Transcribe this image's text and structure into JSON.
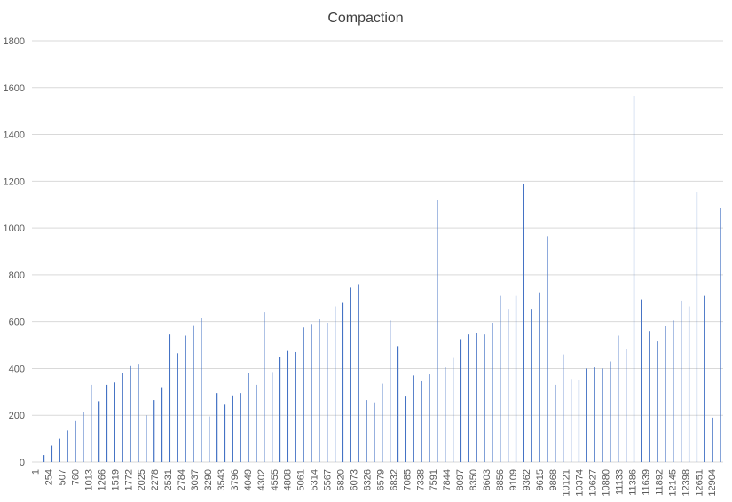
{
  "chart_data": {
    "type": "bar",
    "title": "Compaction",
    "x": [
      170,
      320,
      470,
      620,
      770,
      920,
      1070,
      1220,
      1370,
      1520,
      1670,
      1820,
      1970,
      2120,
      2270,
      2420,
      2570,
      2720,
      2870,
      3020,
      3170,
      3320,
      3470,
      3620,
      3770,
      3920,
      4070,
      4220,
      4370,
      4520,
      4670,
      4820,
      4970,
      5120,
      5270,
      5420,
      5570,
      5720,
      5870,
      6020,
      6170,
      6320,
      6470,
      6620,
      6770,
      6920,
      7070,
      7220,
      7370,
      7520,
      7670,
      7820,
      7970,
      8120,
      8270,
      8420,
      8570,
      8720,
      8870,
      9020,
      9170,
      9320,
      9470,
      9620,
      9770,
      9920,
      10070,
      10220,
      10370,
      10520,
      10670,
      10820,
      10970,
      11120,
      11270,
      11420,
      11570,
      11720,
      11870,
      12020,
      12170,
      12320,
      12470,
      12620,
      12770,
      12920,
      13070
    ],
    "values": [
      30,
      70,
      100,
      135,
      175,
      215,
      330,
      260,
      330,
      340,
      380,
      410,
      420,
      200,
      265,
      320,
      545,
      465,
      540,
      585,
      615,
      195,
      295,
      245,
      285,
      295,
      380,
      330,
      640,
      385,
      450,
      475,
      470,
      575,
      590,
      610,
      595,
      665,
      680,
      745,
      760,
      265,
      255,
      335,
      605,
      495,
      280,
      370,
      345,
      375,
      1120,
      405,
      445,
      525,
      545,
      550,
      545,
      595,
      710,
      655,
      710,
      1190,
      655,
      725,
      965,
      330,
      460,
      355,
      350,
      400,
      405,
      400,
      430,
      540,
      485,
      1565,
      695,
      560,
      515,
      580,
      605,
      690,
      665,
      1155,
      710,
      190,
      1085
    ],
    "color": "#4472c4",
    "xlim": [
      -60,
      13120
    ],
    "xticks": [
      1,
      254,
      507,
      760,
      1013,
      1266,
      1519,
      1772,
      2025,
      2278,
      2531,
      2784,
      3037,
      3290,
      3543,
      3796,
      4049,
      4302,
      4555,
      4808,
      5061,
      5314,
      5567,
      5820,
      6073,
      6326,
      6579,
      6832,
      7085,
      7338,
      7591,
      7844,
      8097,
      8350,
      8603,
      8856,
      9109,
      9362,
      9615,
      9868,
      10121,
      10374,
      10627,
      10880,
      11133,
      11386,
      11639,
      11892,
      12145,
      12398,
      12651,
      12904
    ],
    "ylim": [
      0,
      1800
    ],
    "yticks": [
      0,
      200,
      400,
      600,
      800,
      1000,
      1200,
      1400,
      1600,
      1800
    ],
    "grid": true
  }
}
